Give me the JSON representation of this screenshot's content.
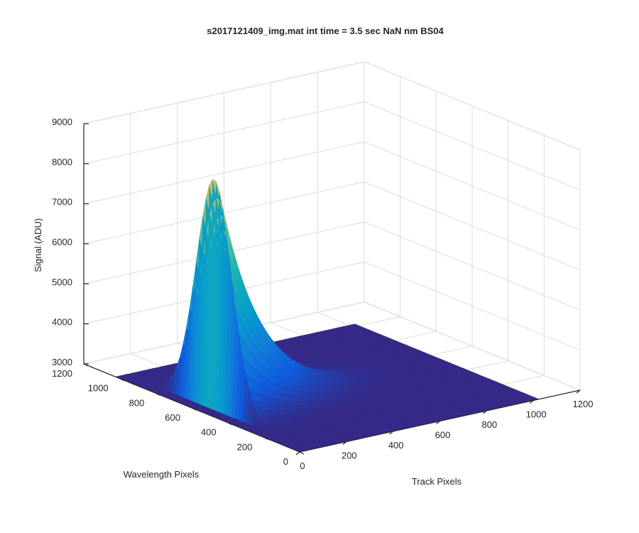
{
  "chart_data": {
    "type": "surface",
    "title": "s2017121409_img.mat int time = 3.5 sec  NaN nm BS04",
    "xlabel": "Track Pixels",
    "ylabel": "Wavelength Pixels",
    "zlabel": "Signal (ADU)",
    "xlim": [
      0,
      1200
    ],
    "ylim": [
      0,
      1200
    ],
    "zlim": [
      3000,
      9000
    ],
    "x_ticks": [
      0,
      200,
      400,
      600,
      800,
      1000,
      1200
    ],
    "y_ticks": [
      0,
      200,
      400,
      600,
      800,
      1000,
      1200
    ],
    "z_ticks": [
      3000,
      4000,
      5000,
      6000,
      7000,
      8000,
      9000
    ],
    "x_tick_labels": [
      "0",
      "200",
      "400",
      "600",
      "800",
      "1000",
      "1200"
    ],
    "y_tick_labels": [
      "0",
      "200",
      "400",
      "600",
      "800",
      "1000",
      "1200"
    ],
    "z_tick_labels": [
      "3000",
      "4000",
      "5000",
      "6000",
      "7000",
      "8000",
      "9000"
    ],
    "grid": true,
    "colormap": "parula",
    "data_extent": {
      "x": [
        1,
        1024
      ],
      "y": [
        1,
        1024
      ]
    },
    "baseline_signal": 3000,
    "peak_signal": 8700,
    "peak_location": {
      "x": 65,
      "y": 560
    },
    "ridge_profile": [
      {
        "x": 65,
        "y": 560,
        "z": 8700
      },
      {
        "x": 100,
        "y": 560,
        "z": 8000
      },
      {
        "x": 200,
        "y": 560,
        "z": 6800
      },
      {
        "x": 300,
        "y": 560,
        "z": 5800
      },
      {
        "x": 400,
        "y": 560,
        "z": 5000
      },
      {
        "x": 500,
        "y": 560,
        "z": 4300
      },
      {
        "x": 600,
        "y": 560,
        "z": 3600
      },
      {
        "x": 700,
        "y": 560,
        "z": 3100
      }
    ]
  }
}
